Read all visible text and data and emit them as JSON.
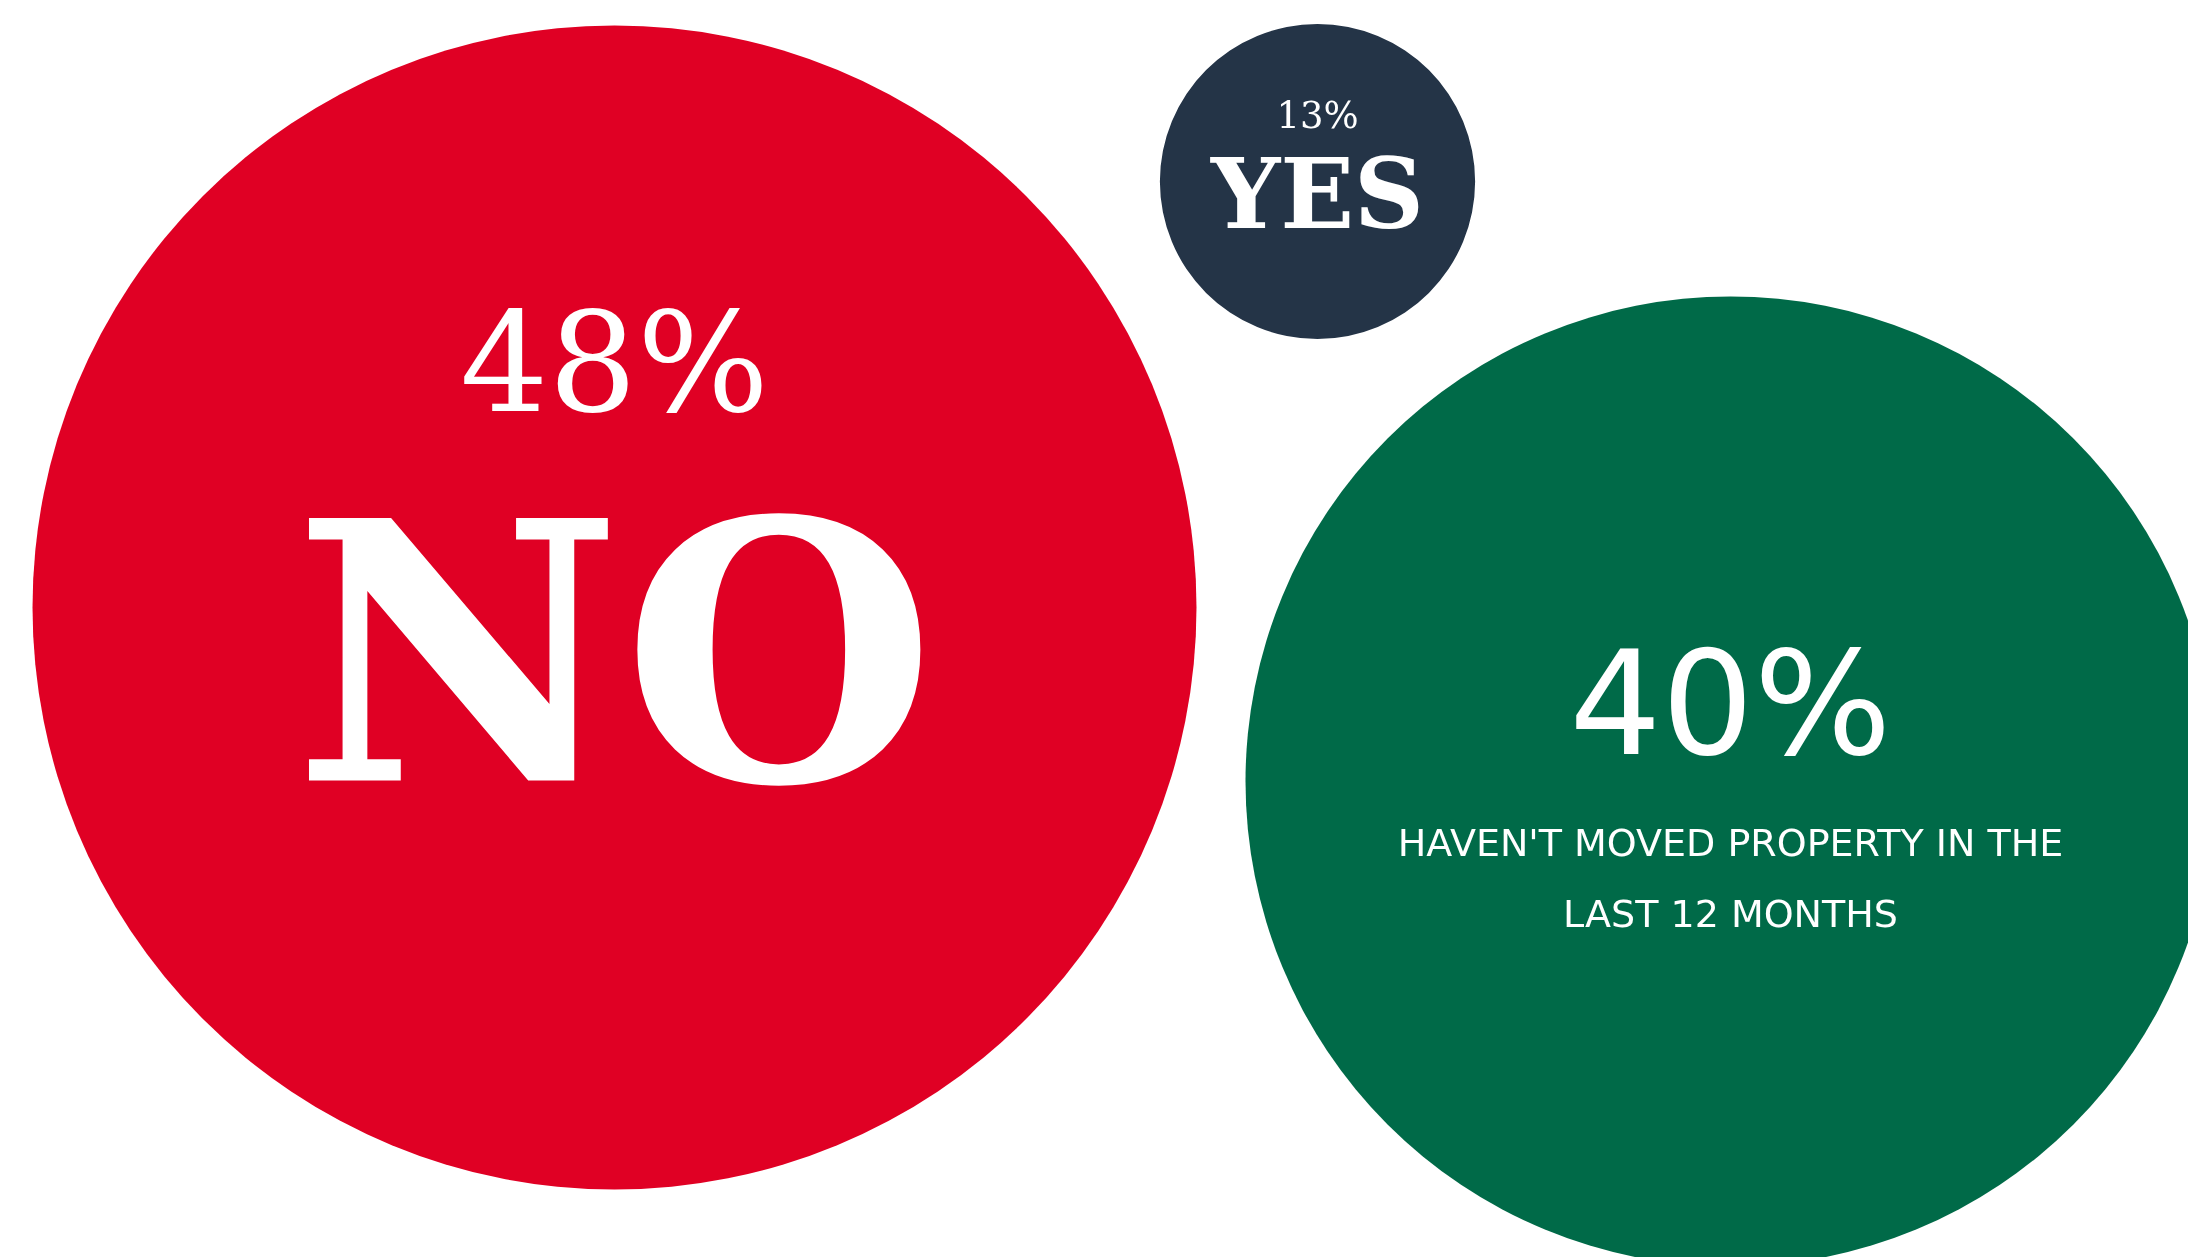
{
  "chart_data": {
    "type": "other",
    "categories": [
      "NO",
      "YES",
      "HAVEN'T MOVED PROPERTY IN THE LAST 12 MONTHS"
    ],
    "values": [
      48,
      13,
      40
    ],
    "value_labels": [
      "48%",
      "13%",
      "40%"
    ],
    "colors": [
      "#e00024",
      "#243447",
      "#006a48"
    ]
  }
}
